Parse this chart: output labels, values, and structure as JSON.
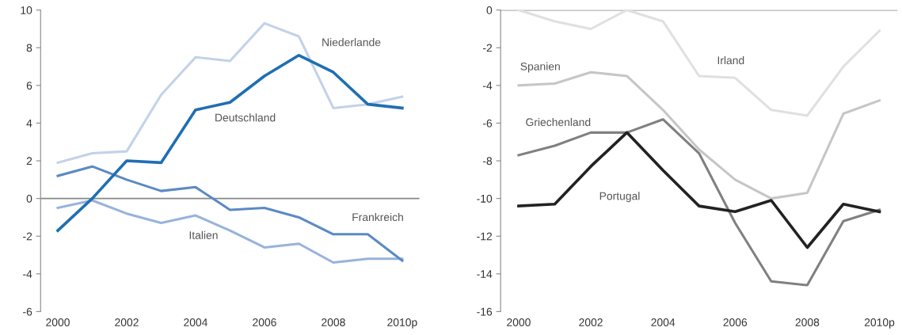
{
  "chart_data": [
    {
      "type": "line",
      "x": [
        2000,
        2001,
        2002,
        2003,
        2004,
        2005,
        2006,
        2007,
        2008,
        2009,
        2010
      ],
      "xlim": [
        1999.5,
        2010.5
      ],
      "xticks": [
        2000,
        2002,
        2004,
        2006,
        2008,
        {
          "value": 2010,
          "label": "2010p"
        }
      ],
      "ylim": [
        -6,
        10
      ],
      "yticks": [
        -6,
        -4,
        -2,
        0,
        2,
        4,
        6,
        8,
        10
      ],
      "grid": false,
      "legend": false,
      "ref_lines": [
        {
          "axis": "y",
          "value": 0,
          "color": "#888888"
        }
      ],
      "series": [
        {
          "name": "Niederlande",
          "color": "#c3d2e9",
          "values": [
            1.9,
            2.4,
            2.5,
            5.5,
            7.5,
            7.3,
            9.3,
            8.6,
            4.8,
            5.0,
            5.4
          ]
        },
        {
          "name": "Italien",
          "color": "#97b3dc",
          "values": [
            -0.5,
            -0.1,
            -0.8,
            -1.3,
            -0.9,
            -1.7,
            -2.6,
            -2.4,
            -3.4,
            -3.2,
            -3.2
          ]
        },
        {
          "name": "Frankreich",
          "color": "#5b8ac4",
          "values": [
            1.2,
            1.7,
            1.0,
            0.4,
            0.6,
            -0.6,
            -0.5,
            -1.0,
            -1.9,
            -1.9,
            -3.3
          ]
        },
        {
          "name": "Deutschland",
          "color": "#1f6fb2",
          "values": [
            -1.7,
            0.0,
            2.0,
            1.9,
            4.7,
            5.1,
            6.5,
            7.6,
            6.7,
            5.0,
            4.8
          ]
        }
      ]
    },
    {
      "type": "line",
      "x": [
        2000,
        2001,
        2002,
        2003,
        2004,
        2005,
        2006,
        2007,
        2008,
        2009,
        2010
      ],
      "xlim": [
        1999.5,
        2010.5
      ],
      "xticks": [
        2000,
        2002,
        2004,
        2006,
        2008,
        {
          "value": 2010,
          "label": "2010p"
        }
      ],
      "ylim": [
        -16,
        0
      ],
      "yticks": [
        -16,
        -14,
        -12,
        -10,
        -8,
        -6,
        -4,
        -2,
        0
      ],
      "grid": false,
      "legend": false,
      "ref_lines": [
        {
          "axis": "y",
          "value": 0,
          "color": "#888888"
        }
      ],
      "series": [
        {
          "name": "Irland",
          "color": "#e0e0e0",
          "values": [
            0.0,
            -0.6,
            -1.0,
            0.0,
            -0.6,
            -3.5,
            -3.6,
            -5.3,
            -5.6,
            -3.0,
            -1.1
          ]
        },
        {
          "name": "Spanien",
          "color": "#c6c6c6",
          "values": [
            -4.0,
            -3.9,
            -3.3,
            -3.5,
            -5.3,
            -7.4,
            -9.0,
            -10.0,
            -9.7,
            -5.5,
            -4.8
          ]
        },
        {
          "name": "Griechenland",
          "color": "#808080",
          "values": [
            -7.7,
            -7.2,
            -6.5,
            -6.5,
            -5.8,
            -7.6,
            -11.3,
            -14.4,
            -14.6,
            -11.2,
            -10.6
          ]
        },
        {
          "name": "Portugal",
          "color": "#222222",
          "values": [
            -10.4,
            -10.3,
            -8.3,
            -6.5,
            -8.5,
            -10.4,
            -10.7,
            -10.1,
            -12.6,
            -10.3,
            -10.7
          ]
        }
      ]
    }
  ]
}
